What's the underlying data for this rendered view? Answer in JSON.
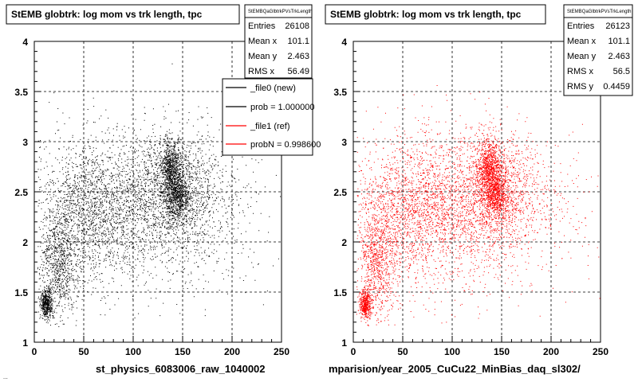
{
  "colors": {
    "series_new": "#000000",
    "series_ref": "#ff0000",
    "background": "#ffffff"
  },
  "footer_text": "...",
  "chart_data": [
    {
      "type": "scatter",
      "title": "StEMB globtrk: log mom vs trk length, tpc",
      "xlabel": "st_physics_6083006_raw_1040002",
      "ylabel": "",
      "xlim": [
        0,
        250
      ],
      "ylim": [
        1,
        4
      ],
      "xticks": [
        "0",
        "50",
        "100",
        "150",
        "200",
        "250"
      ],
      "yticks": [
        "1",
        "1.5",
        "2",
        "2.5",
        "3",
        "3.5",
        "4"
      ],
      "grid": true,
      "stats": {
        "header": "StEMBQaGlbtrkPVsTrkLength",
        "rows": [
          {
            "label": "Entries",
            "value": "26108"
          },
          {
            "label": "Mean x",
            "value": "101.1"
          },
          {
            "label": "Mean y",
            "value": "2.463"
          },
          {
            "label": "RMS x",
            "value": "56.49"
          }
        ]
      },
      "legend": {
        "position": "top-right",
        "entries": [
          {
            "label": "_file0 (new)",
            "color": "#000000"
          },
          {
            "label": "prob = 1.000000",
            "color": "#000000"
          },
          {
            "label": "_file1 (ref)",
            "color": "#ff0000"
          },
          {
            "label": "probN = 0.998600",
            "color": "#ff0000"
          }
        ]
      },
      "series": [
        {
          "color": "#000000",
          "entries": 26108,
          "clusters": [
            {
              "x": 12,
              "y": 1.38,
              "sx": 3,
              "sy": 0.07,
              "w": 0.07
            },
            {
              "x": 25,
              "y": 1.8,
              "sx": 10,
              "sy": 0.3,
              "w": 0.12
            },
            {
              "x": 60,
              "y": 2.35,
              "sx": 28,
              "sy": 0.35,
              "w": 0.22
            },
            {
              "x": 138,
              "y": 2.72,
              "sx": 6,
              "sy": 0.15,
              "w": 0.12
            },
            {
              "x": 145,
              "y": 2.45,
              "sx": 6,
              "sy": 0.1,
              "w": 0.07
            },
            {
              "x": 140,
              "y": 2.5,
              "sx": 25,
              "sy": 0.3,
              "w": 0.22
            },
            {
              "x": 110,
              "y": 2.25,
              "sx": 60,
              "sy": 0.4,
              "w": 0.18
            }
          ]
        }
      ]
    },
    {
      "type": "scatter",
      "title": "StEMB globtrk: log mom vs trk length, tpc",
      "xlabel": "mparision/year_2005_CuCu22_MinBias_daq_sl302/",
      "ylabel": "",
      "xlim": [
        0,
        250
      ],
      "ylim": [
        1,
        4
      ],
      "xticks": [
        "0",
        "50",
        "100",
        "150",
        "200",
        "250"
      ],
      "yticks": [
        "1",
        "1.5",
        "2",
        "2.5",
        "3",
        "3.5",
        "4"
      ],
      "grid": true,
      "stats": {
        "header": "StEMBQaGlbtrkPVsTrkLength",
        "rows": [
          {
            "label": "Entries",
            "value": "26123"
          },
          {
            "label": "Mean x",
            "value": "101.1"
          },
          {
            "label": "Mean y",
            "value": "2.463"
          },
          {
            "label": "RMS x",
            "value": "56.5"
          },
          {
            "label": "RMS y",
            "value": "0.4459"
          }
        ]
      },
      "series": [
        {
          "color": "#ff0000",
          "entries": 26123,
          "clusters": [
            {
              "x": 12,
              "y": 1.38,
              "sx": 3,
              "sy": 0.07,
              "w": 0.07
            },
            {
              "x": 25,
              "y": 1.8,
              "sx": 10,
              "sy": 0.3,
              "w": 0.12
            },
            {
              "x": 60,
              "y": 2.35,
              "sx": 28,
              "sy": 0.35,
              "w": 0.22
            },
            {
              "x": 138,
              "y": 2.72,
              "sx": 6,
              "sy": 0.15,
              "w": 0.12
            },
            {
              "x": 145,
              "y": 2.45,
              "sx": 6,
              "sy": 0.1,
              "w": 0.07
            },
            {
              "x": 140,
              "y": 2.5,
              "sx": 25,
              "sy": 0.3,
              "w": 0.22
            },
            {
              "x": 110,
              "y": 2.25,
              "sx": 60,
              "sy": 0.4,
              "w": 0.18
            }
          ]
        }
      ]
    }
  ]
}
